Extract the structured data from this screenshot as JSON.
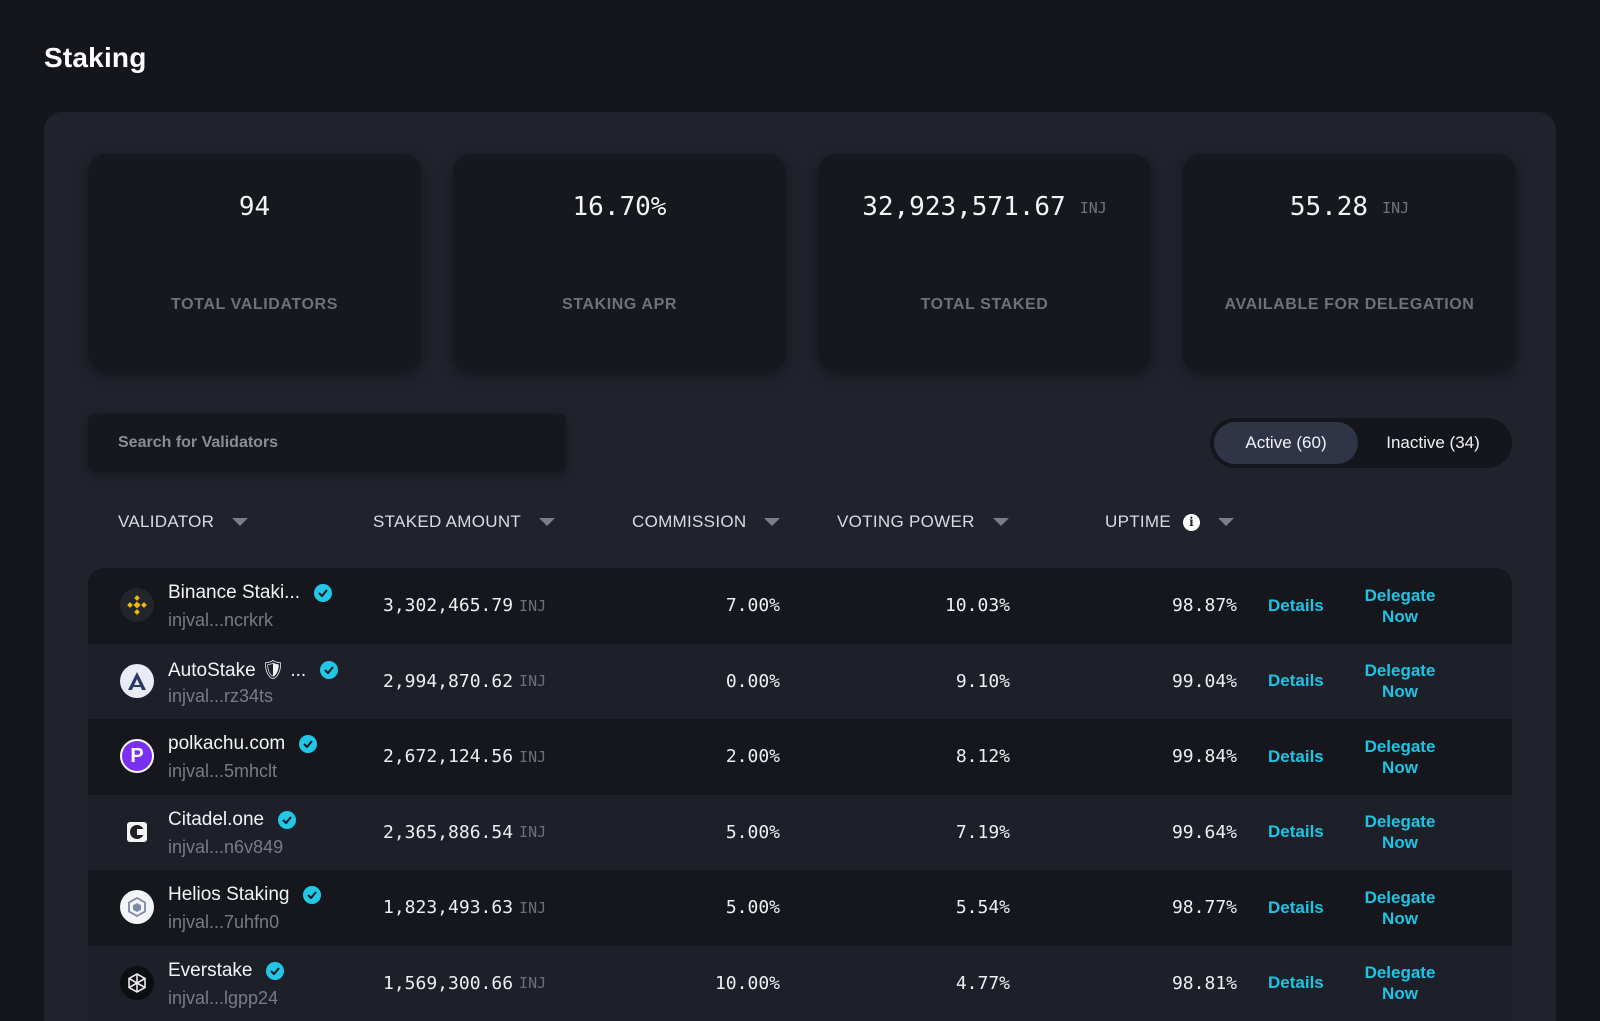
{
  "page": {
    "title": "Staking"
  },
  "stats": [
    {
      "value": "94",
      "unit": "",
      "label": "TOTAL VALIDATORS"
    },
    {
      "value": "16.70%",
      "unit": "",
      "label": "STAKING APR"
    },
    {
      "value": "32,923,571.67",
      "unit": "INJ",
      "label": "TOTAL STAKED"
    },
    {
      "value": "55.28",
      "unit": "INJ",
      "label": "AVAILABLE FOR DELEGATION"
    }
  ],
  "search": {
    "placeholder": "Search for Validators",
    "value": ""
  },
  "filter": {
    "active_label": "Active (60)",
    "inactive_label": "Inactive (34)",
    "selected": "active"
  },
  "columns": {
    "validator": "VALIDATOR",
    "staked_amount": "STAKED AMOUNT",
    "commission": "COMMISSION",
    "voting_power": "VOTING POWER",
    "uptime": "UPTIME"
  },
  "actions": {
    "details": "Details",
    "delegate": "Delegate Now"
  },
  "colors": {
    "accent": "#1ec4e4",
    "verified": "#22c7e6",
    "panel": "#20232c",
    "background": "#14161c"
  },
  "validators": [
    {
      "name": "Binance Staki...",
      "address": "injval...ncrkrk",
      "staked": "3,302,465.79",
      "unit": "INJ",
      "commission": "7.00%",
      "voting_power": "10.03%",
      "uptime": "98.87%",
      "verified": true,
      "icon": "binance-logo-icon"
    },
    {
      "name": "AutoStake 🛡 ...",
      "address": "injval...rz34ts",
      "staked": "2,994,870.62",
      "unit": "INJ",
      "commission": "0.00%",
      "voting_power": "9.10%",
      "uptime": "99.04%",
      "verified": true,
      "icon": "autostake-logo-icon"
    },
    {
      "name": "polkachu.com",
      "address": "injval...5mhclt",
      "staked": "2,672,124.56",
      "unit": "INJ",
      "commission": "2.00%",
      "voting_power": "8.12%",
      "uptime": "99.84%",
      "verified": true,
      "icon": "polkachu-logo-icon"
    },
    {
      "name": "Citadel.one",
      "address": "injval...n6v849",
      "staked": "2,365,886.54",
      "unit": "INJ",
      "commission": "5.00%",
      "voting_power": "7.19%",
      "uptime": "99.64%",
      "verified": true,
      "icon": "citadel-logo-icon"
    },
    {
      "name": "Helios Staking",
      "address": "injval...7uhfn0",
      "staked": "1,823,493.63",
      "unit": "INJ",
      "commission": "5.00%",
      "voting_power": "5.54%",
      "uptime": "98.77%",
      "verified": true,
      "icon": "helios-logo-icon"
    },
    {
      "name": "Everstake",
      "address": "injval...lgpp24",
      "staked": "1,569,300.66",
      "unit": "INJ",
      "commission": "10.00%",
      "voting_power": "4.77%",
      "uptime": "98.81%",
      "verified": true,
      "icon": "everstake-logo-icon"
    }
  ]
}
